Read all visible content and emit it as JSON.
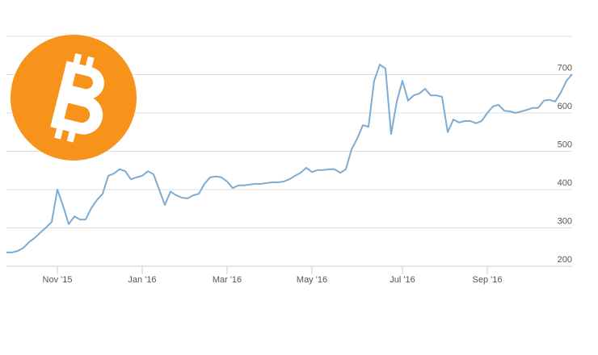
{
  "chart_data": {
    "type": "line",
    "categories": [
      null,
      null,
      null,
      null,
      null,
      null,
      null,
      null,
      null,
      "Nov '15",
      null,
      null,
      null,
      null,
      null,
      null,
      null,
      null,
      null,
      null,
      null,
      null,
      null,
      null,
      "Jan '16",
      null,
      null,
      null,
      null,
      null,
      null,
      null,
      null,
      null,
      null,
      null,
      null,
      null,
      null,
      "Mar '16",
      null,
      null,
      null,
      null,
      null,
      null,
      null,
      null,
      null,
      null,
      null,
      null,
      null,
      null,
      "May '16",
      null,
      null,
      null,
      null,
      null,
      null,
      null,
      null,
      null,
      null,
      null,
      null,
      null,
      null,
      null,
      "Jul '16",
      null,
      null,
      null,
      null,
      null,
      null,
      null,
      null,
      null,
      null,
      null,
      null,
      null,
      null,
      "Sep '16",
      null,
      null,
      null,
      null,
      null,
      null,
      null,
      null,
      null,
      null,
      null,
      null,
      null,
      null,
      null
    ],
    "values": [
      236,
      236,
      240,
      248,
      263,
      274,
      288,
      301,
      316,
      400,
      358,
      310,
      330,
      322,
      322,
      352,
      373,
      389,
      436,
      442,
      453,
      448,
      427,
      432,
      436,
      448,
      440,
      400,
      360,
      395,
      385,
      379,
      377,
      385,
      389,
      415,
      432,
      434,
      432,
      421,
      404,
      411,
      411,
      413,
      415,
      415,
      417,
      419,
      419,
      421,
      427,
      436,
      444,
      457,
      446,
      451,
      451,
      453,
      453,
      444,
      453,
      505,
      533,
      568,
      564,
      684,
      726,
      716,
      545,
      630,
      684,
      632,
      646,
      651,
      663,
      646,
      646,
      642,
      550,
      583,
      575,
      579,
      579,
      573,
      579,
      600,
      617,
      621,
      606,
      604,
      600,
      604,
      608,
      613,
      613,
      632,
      634,
      630,
      653,
      684,
      701
    ],
    "color": "#7cacd4",
    "ylim": [
      200,
      800
    ],
    "yticks": [
      200,
      300,
      400,
      500,
      600,
      700
    ],
    "grid": true
  }
}
